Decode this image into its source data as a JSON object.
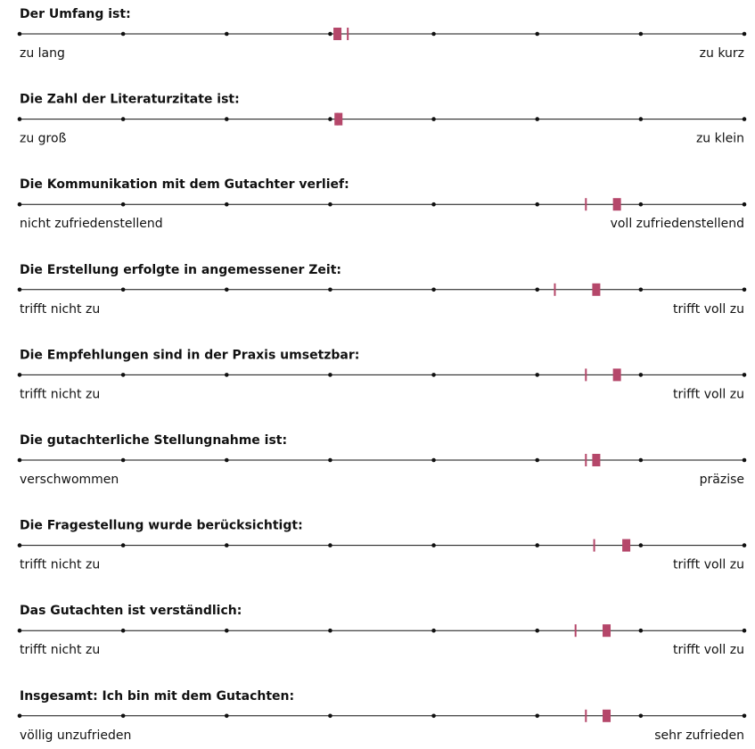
{
  "chart_data": {
    "type": "scale",
    "color": "#b5476a",
    "xlim": [
      1,
      8
    ],
    "xticks": [
      1,
      2,
      3,
      4,
      5,
      6,
      7,
      8
    ],
    "items": [
      {
        "title": "Der Umfang ist:",
        "left": "zu lang",
        "right": "zu kurz",
        "mean": 4.07,
        "median": 4.17
      },
      {
        "title": "Die Zahl der Literaturzitate ist:",
        "left": "zu groß",
        "right": "zu klein",
        "mean": 4.08,
        "median": 4.07
      },
      {
        "title": "Die Kommunikation mit dem Gutachter verlief:",
        "left": "nicht zufriedenstellend",
        "right": "voll zufriedenstellend",
        "mean": 6.77,
        "median": 6.47
      },
      {
        "title": "Die Erstellung erfolgte in angemessener Zeit:",
        "left": "trifft nicht zu",
        "right": "trifft voll zu",
        "mean": 6.57,
        "median": 6.17
      },
      {
        "title": "Die Empfehlungen sind in der Praxis umsetzbar:",
        "left": "trifft nicht zu",
        "right": "trifft voll zu",
        "mean": 6.77,
        "median": 6.47
      },
      {
        "title": "Die gutachterliche Stellungnahme ist:",
        "left": "verschwommen",
        "right": "präzise",
        "mean": 6.57,
        "median": 6.47
      },
      {
        "title": "Die Fragestellung wurde berücksichtigt:",
        "left": "trifft nicht zu",
        "right": "trifft voll zu",
        "mean": 6.86,
        "median": 6.55
      },
      {
        "title": "Das Gutachten ist verständlich:",
        "left": "trifft nicht zu",
        "right": "trifft voll zu",
        "mean": 6.67,
        "median": 6.37
      },
      {
        "title": "Insgesamt: Ich bin mit dem Gutachten:",
        "left": "völlig unzufrieden",
        "right": "sehr zufrieden",
        "mean": 6.67,
        "median": 6.47
      }
    ]
  }
}
